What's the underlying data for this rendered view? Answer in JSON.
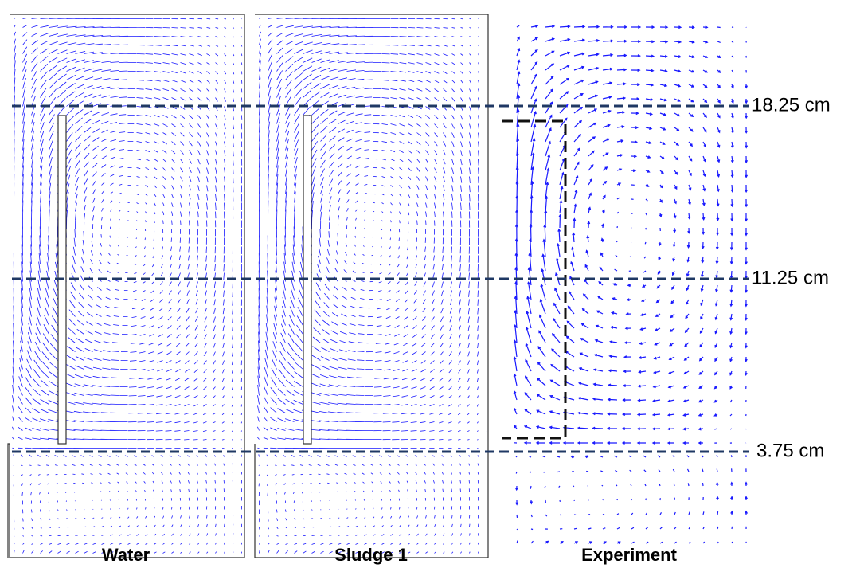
{
  "panels": [
    {
      "label": "Water"
    },
    {
      "label": "Sludge 1"
    },
    {
      "label": "Experiment"
    }
  ],
  "levels": [
    {
      "label": "18.25 cm"
    },
    {
      "label": "11.25 cm"
    },
    {
      "label": "3.75 cm"
    }
  ]
}
